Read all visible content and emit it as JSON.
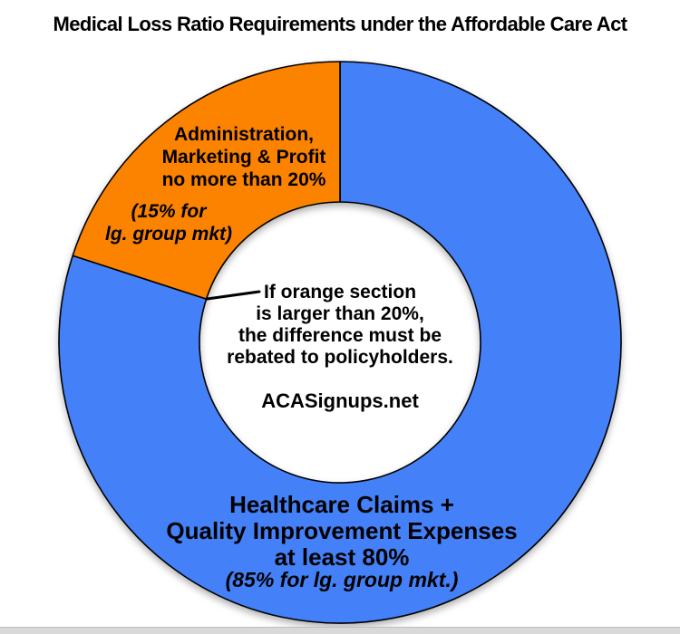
{
  "title": "Medical Loss Ratio Requirements under the Affordable Care Act",
  "chart_data": {
    "type": "pie",
    "donut": true,
    "start_angle_deg": 90,
    "title": "Medical Loss Ratio Requirements under the Affordable Care Act",
    "slices": [
      {
        "name": "healthcare-claims",
        "label": "Healthcare Claims + Quality Improvement Expenses",
        "constraint": "at least 80%",
        "large_group_note": "(85% for lg. group mkt.)",
        "value": 80,
        "color": "#4480F8"
      },
      {
        "name": "admin-marketing-profit",
        "label": "Administration, Marketing & Profit",
        "constraint": "no more than 20%",
        "large_group_note": "(15% for lg. group mkt)",
        "value": 20,
        "color": "#FB8300"
      }
    ],
    "annotation": "If orange section is larger than 20%, the difference must be rebated to policyholders.",
    "source": "ACASignups.net",
    "legend_position": "none"
  },
  "labels": {
    "orange": {
      "line1": "Administration,",
      "line2": "Marketing & Profit",
      "line3": "no more than 20%"
    },
    "orange_sub": {
      "line1": "(15% for",
      "line2": "lg. group mkt)"
    },
    "center": {
      "line1": "If orange section",
      "line2": "is larger than 20%,",
      "line3": "the difference must be",
      "line4": "rebated to policyholders.",
      "site": "ACASignups.net"
    },
    "blue": {
      "line1": "Healthcare Claims +",
      "line2": "Quality Improvement Expenses",
      "line3": "at least 80%",
      "line4": "(85% for lg. group mkt.)"
    }
  },
  "colors": {
    "blue_slice": "#4480F8",
    "orange_slice": "#FB8300",
    "outline": "#000000",
    "footer_bar": "#D9D9D9",
    "footer_bar_border": "#BDBDBD"
  }
}
